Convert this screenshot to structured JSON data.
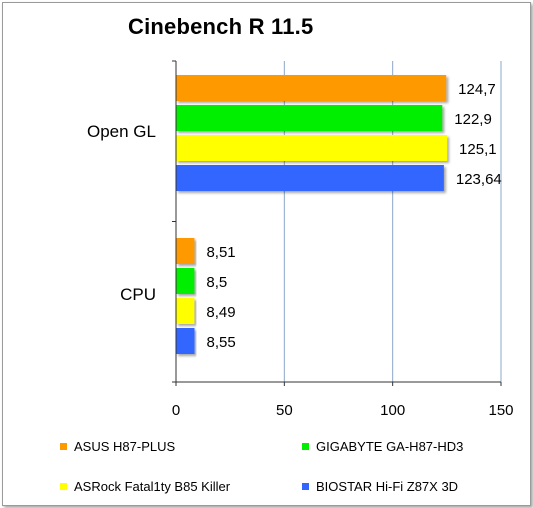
{
  "chart_data": {
    "type": "bar",
    "orientation": "horizontal",
    "title": "Cinebench R 11.5",
    "categories": [
      "Open GL",
      "CPU"
    ],
    "series": [
      {
        "name": "ASUS H87-PLUS",
        "color": "#ff9900",
        "values": [
          124.7,
          8.51
        ],
        "labels": [
          "124,7",
          "8,51"
        ]
      },
      {
        "name": "GIGABYTE GA-H87-HD3",
        "color": "#00ee00",
        "values": [
          122.9,
          8.5
        ],
        "labels": [
          "122,9",
          "8,5"
        ]
      },
      {
        "name": "ASRock Fatal1ty B85 Killer",
        "color": "#ffff00",
        "values": [
          125.1,
          8.49
        ],
        "labels": [
          "125,1",
          "8,49"
        ]
      },
      {
        "name": "BIOSTAR Hi-Fi Z87X 3D",
        "color": "#3366ff",
        "values": [
          123.64,
          8.55
        ],
        "labels": [
          "123,64",
          "8,55"
        ]
      }
    ],
    "xlim": [
      0,
      150
    ],
    "x_ticks": [
      "0",
      "50",
      "100",
      "150"
    ],
    "grid": true,
    "legend_position": "bottom"
  }
}
